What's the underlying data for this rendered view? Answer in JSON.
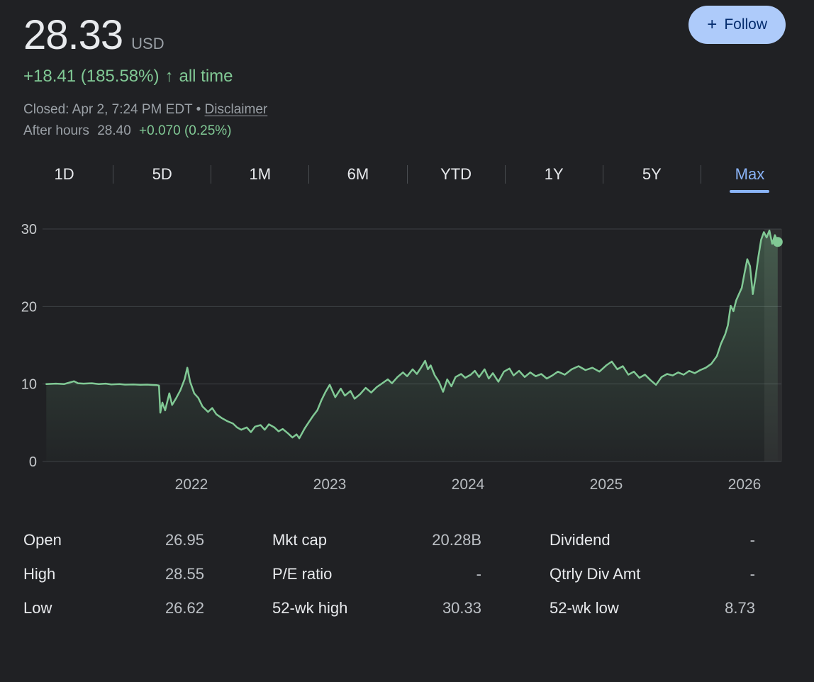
{
  "header": {
    "price": "28.33",
    "currency": "USD",
    "change": "+18.41 (185.58%)",
    "trend_arrow": "↑",
    "period": "all time",
    "closed_text": "Closed: Apr 2, 7:24 PM EDT",
    "separator": "•",
    "disclaimer_label": "Disclaimer",
    "after_hours_label": "After hours",
    "after_hours_price": "28.40",
    "after_hours_change": "+0.070 (0.25%)",
    "follow_icon": "+",
    "follow_label": "Follow"
  },
  "tabs": [
    {
      "label": "1D",
      "selected": false
    },
    {
      "label": "5D",
      "selected": false
    },
    {
      "label": "1M",
      "selected": false
    },
    {
      "label": "6M",
      "selected": false
    },
    {
      "label": "YTD",
      "selected": false
    },
    {
      "label": "1Y",
      "selected": false
    },
    {
      "label": "5Y",
      "selected": false
    },
    {
      "label": "Max",
      "selected": true
    }
  ],
  "chart_data": {
    "type": "area",
    "series_name": "Price (USD), all time",
    "line_color": "#81c995",
    "fill_color": "#81c995",
    "y_ticks": [
      0,
      10,
      20,
      30
    ],
    "x_ticks": [
      "2022",
      "2023",
      "2024",
      "2025",
      "2026"
    ],
    "x_tick_years": [
      2022,
      2023,
      2024,
      2025,
      2026
    ],
    "y_range": [
      0,
      32.3
    ],
    "x_range": [
      2020.95,
      2026.3
    ],
    "last_point": {
      "x": 2026.24,
      "price": 28.33
    },
    "points": [
      [
        2020.95,
        10.0
      ],
      [
        2021.02,
        10.05
      ],
      [
        2021.08,
        10.0
      ],
      [
        2021.12,
        10.2
      ],
      [
        2021.15,
        10.35
      ],
      [
        2021.18,
        10.1
      ],
      [
        2021.22,
        10.05
      ],
      [
        2021.28,
        10.1
      ],
      [
        2021.33,
        10.0
      ],
      [
        2021.38,
        10.05
      ],
      [
        2021.42,
        9.95
      ],
      [
        2021.48,
        10.0
      ],
      [
        2021.52,
        9.92
      ],
      [
        2021.58,
        9.95
      ],
      [
        2021.63,
        9.9
      ],
      [
        2021.68,
        9.92
      ],
      [
        2021.72,
        9.88
      ],
      [
        2021.75,
        9.85
      ],
      [
        2021.765,
        9.8
      ],
      [
        2021.775,
        6.3
      ],
      [
        2021.79,
        7.6
      ],
      [
        2021.81,
        6.6
      ],
      [
        2021.84,
        8.8
      ],
      [
        2021.86,
        7.3
      ],
      [
        2021.89,
        8.2
      ],
      [
        2021.92,
        9.2
      ],
      [
        2021.95,
        10.6
      ],
      [
        2021.97,
        12.1
      ],
      [
        2021.99,
        10.3
      ],
      [
        2022.02,
        8.8
      ],
      [
        2022.05,
        8.2
      ],
      [
        2022.08,
        7.1
      ],
      [
        2022.12,
        6.4
      ],
      [
        2022.15,
        6.9
      ],
      [
        2022.18,
        6.1
      ],
      [
        2022.22,
        5.6
      ],
      [
        2022.26,
        5.2
      ],
      [
        2022.3,
        4.9
      ],
      [
        2022.33,
        4.4
      ],
      [
        2022.36,
        4.1
      ],
      [
        2022.4,
        4.4
      ],
      [
        2022.43,
        3.8
      ],
      [
        2022.46,
        4.5
      ],
      [
        2022.5,
        4.7
      ],
      [
        2022.53,
        4.1
      ],
      [
        2022.56,
        4.8
      ],
      [
        2022.6,
        4.4
      ],
      [
        2022.63,
        3.9
      ],
      [
        2022.66,
        4.2
      ],
      [
        2022.7,
        3.6
      ],
      [
        2022.73,
        3.1
      ],
      [
        2022.76,
        3.5
      ],
      [
        2022.78,
        3.0
      ],
      [
        2022.82,
        4.3
      ],
      [
        2022.85,
        5.1
      ],
      [
        2022.88,
        5.9
      ],
      [
        2022.91,
        6.6
      ],
      [
        2022.94,
        7.9
      ],
      [
        2022.97,
        9.0
      ],
      [
        2023.0,
        9.9
      ],
      [
        2023.04,
        8.3
      ],
      [
        2023.08,
        9.4
      ],
      [
        2023.11,
        8.5
      ],
      [
        2023.15,
        9.1
      ],
      [
        2023.18,
        8.1
      ],
      [
        2023.22,
        8.7
      ],
      [
        2023.26,
        9.5
      ],
      [
        2023.3,
        8.9
      ],
      [
        2023.34,
        9.6
      ],
      [
        2023.38,
        10.1
      ],
      [
        2023.42,
        10.6
      ],
      [
        2023.45,
        10.1
      ],
      [
        2023.49,
        10.9
      ],
      [
        2023.53,
        11.5
      ],
      [
        2023.56,
        11.0
      ],
      [
        2023.6,
        11.9
      ],
      [
        2023.63,
        11.3
      ],
      [
        2023.66,
        12.1
      ],
      [
        2023.69,
        13.0
      ],
      [
        2023.71,
        11.9
      ],
      [
        2023.73,
        12.4
      ],
      [
        2023.76,
        11.1
      ],
      [
        2023.79,
        10.3
      ],
      [
        2023.82,
        9.0
      ],
      [
        2023.85,
        10.6
      ],
      [
        2023.88,
        9.7
      ],
      [
        2023.91,
        10.9
      ],
      [
        2023.95,
        11.3
      ],
      [
        2023.98,
        10.8
      ],
      [
        2024.02,
        11.2
      ],
      [
        2024.05,
        11.7
      ],
      [
        2024.08,
        10.9
      ],
      [
        2024.12,
        11.9
      ],
      [
        2024.15,
        10.7
      ],
      [
        2024.18,
        11.4
      ],
      [
        2024.22,
        10.3
      ],
      [
        2024.26,
        11.6
      ],
      [
        2024.3,
        12.0
      ],
      [
        2024.33,
        11.1
      ],
      [
        2024.37,
        11.7
      ],
      [
        2024.41,
        10.9
      ],
      [
        2024.45,
        11.5
      ],
      [
        2024.49,
        11.0
      ],
      [
        2024.53,
        11.3
      ],
      [
        2024.57,
        10.7
      ],
      [
        2024.61,
        11.1
      ],
      [
        2024.65,
        11.6
      ],
      [
        2024.7,
        11.2
      ],
      [
        2024.75,
        11.9
      ],
      [
        2024.8,
        12.3
      ],
      [
        2024.85,
        11.8
      ],
      [
        2024.9,
        12.1
      ],
      [
        2024.95,
        11.6
      ],
      [
        2025.0,
        12.4
      ],
      [
        2025.04,
        12.9
      ],
      [
        2025.08,
        11.9
      ],
      [
        2025.12,
        12.3
      ],
      [
        2025.16,
        11.2
      ],
      [
        2025.2,
        11.6
      ],
      [
        2025.24,
        10.8
      ],
      [
        2025.28,
        11.2
      ],
      [
        2025.32,
        10.5
      ],
      [
        2025.36,
        9.9
      ],
      [
        2025.4,
        10.9
      ],
      [
        2025.44,
        11.3
      ],
      [
        2025.48,
        11.1
      ],
      [
        2025.52,
        11.5
      ],
      [
        2025.56,
        11.2
      ],
      [
        2025.6,
        11.7
      ],
      [
        2025.64,
        11.4
      ],
      [
        2025.68,
        11.8
      ],
      [
        2025.72,
        12.1
      ],
      [
        2025.76,
        12.6
      ],
      [
        2025.8,
        13.6
      ],
      [
        2025.83,
        15.2
      ],
      [
        2025.86,
        16.4
      ],
      [
        2025.88,
        17.6
      ],
      [
        2025.9,
        20.1
      ],
      [
        2025.92,
        19.4
      ],
      [
        2025.94,
        20.8
      ],
      [
        2025.96,
        21.6
      ],
      [
        2025.98,
        22.4
      ],
      [
        2026.0,
        24.3
      ],
      [
        2026.02,
        26.1
      ],
      [
        2026.04,
        25.2
      ],
      [
        2026.06,
        21.6
      ],
      [
        2026.08,
        23.8
      ],
      [
        2026.1,
        26.4
      ],
      [
        2026.12,
        28.6
      ],
      [
        2026.14,
        29.6
      ],
      [
        2026.16,
        28.9
      ],
      [
        2026.18,
        29.8
      ],
      [
        2026.2,
        28.1
      ],
      [
        2026.22,
        29.2
      ],
      [
        2026.24,
        28.33
      ]
    ]
  },
  "stats": {
    "columns": [
      {
        "rows": [
          {
            "label": "Open",
            "value": "26.95"
          },
          {
            "label": "High",
            "value": "28.55"
          },
          {
            "label": "Low",
            "value": "26.62"
          }
        ]
      },
      {
        "rows": [
          {
            "label": "Mkt cap",
            "value": "20.28B"
          },
          {
            "label": "P/E ratio",
            "value": "-"
          },
          {
            "label": "52-wk high",
            "value": "30.33"
          }
        ]
      },
      {
        "rows": [
          {
            "label": "Dividend",
            "value": "-"
          },
          {
            "label": "Qtrly Div Amt",
            "value": "-"
          },
          {
            "label": "52-wk low",
            "value": "8.73"
          }
        ]
      }
    ]
  },
  "colors": {
    "background": "#202124",
    "text_primary": "#e8eaed",
    "text_secondary": "#9aa0a6",
    "positive_green": "#81c995",
    "accent_blue": "#8ab4f8",
    "follow_bg": "#aecbfa",
    "gridline": "#3c4043"
  }
}
